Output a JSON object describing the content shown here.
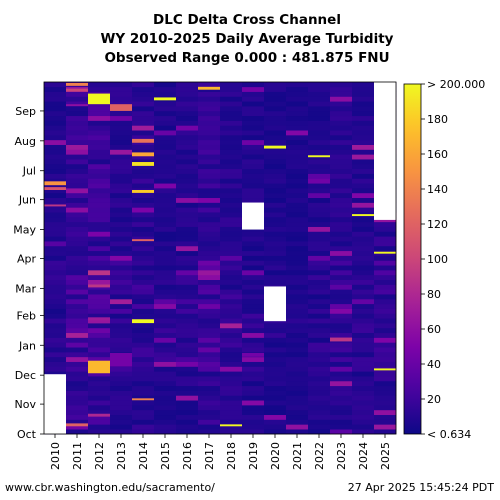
{
  "chart_data": {
    "type": "heatmap",
    "title_lines": [
      "DLC Delta Cross Channel",
      "WY 2010-2025 Daily Average Turbidity",
      "Observed Range 0.000 : 481.875 FNU"
    ],
    "x_categories": [
      "2010",
      "2011",
      "2012",
      "2013",
      "2014",
      "2015",
      "2016",
      "2017",
      "2018",
      "2019",
      "2020",
      "2021",
      "2022",
      "2023",
      "2024",
      "2025"
    ],
    "y_ticks": [
      "Oct",
      "Nov",
      "Dec",
      "Jan",
      "Feb",
      "Mar",
      "Apr",
      "May",
      "Jun",
      "Jul",
      "Aug",
      "Sep"
    ],
    "y_tick_days": [
      0,
      31,
      61,
      92,
      123,
      151,
      182,
      212,
      243,
      273,
      304,
      335
    ],
    "y_range_days": [
      0,
      365
    ],
    "colorbar": {
      "ticks": [
        {
          "label": "< 0.634",
          "value": 0
        },
        {
          "label": "20",
          "value": 20
        },
        {
          "label": "40",
          "value": 40
        },
        {
          "label": "60",
          "value": 60
        },
        {
          "label": "80",
          "value": 80
        },
        {
          "label": "100",
          "value": 100
        },
        {
          "label": "120",
          "value": 120
        },
        {
          "label": "140",
          "value": 140
        },
        {
          "label": "160",
          "value": 160
        },
        {
          "label": "180",
          "value": 180
        },
        {
          "label": "> 200.000",
          "value": 200
        }
      ],
      "range": [
        0,
        200
      ],
      "colormap": "plasma"
    },
    "base_levels": [
      8,
      14,
      18,
      10,
      12,
      8,
      10,
      14,
      10,
      8,
      7,
      6,
      8,
      10,
      9,
      12
    ],
    "missing_ranges": [
      {
        "year": "2010",
        "start_day": 0,
        "end_day": 62
      },
      {
        "year": "2019",
        "start_day": 212,
        "end_day": 240
      },
      {
        "year": "2020",
        "start_day": 117,
        "end_day": 153
      },
      {
        "year": "2025",
        "start_day": 222,
        "end_day": 365
      }
    ],
    "events": [
      {
        "year": "2010",
        "start_day": 258,
        "end_day": 262,
        "value": 150
      },
      {
        "year": "2010",
        "start_day": 253,
        "end_day": 256,
        "value": 110
      },
      {
        "year": "2010",
        "start_day": 236,
        "end_day": 238,
        "value": 90
      },
      {
        "year": "2011",
        "start_day": 361,
        "end_day": 364,
        "value": 140
      },
      {
        "year": "2011",
        "start_day": 355,
        "end_day": 358,
        "value": 100
      },
      {
        "year": "2011",
        "start_day": 8,
        "end_day": 11,
        "value": 120
      },
      {
        "year": "2011",
        "start_day": 340,
        "end_day": 342,
        "value": 60
      },
      {
        "year": "2012",
        "start_day": 342,
        "end_day": 353,
        "value": 200
      },
      {
        "year": "2012",
        "start_day": 63,
        "end_day": 76,
        "value": 170
      },
      {
        "year": "2012",
        "start_day": 18,
        "end_day": 21,
        "value": 80
      },
      {
        "year": "2012",
        "start_day": 118,
        "end_day": 121,
        "value": 70
      },
      {
        "year": "2012",
        "start_day": 152,
        "end_day": 155,
        "value": 90
      },
      {
        "year": "2013",
        "start_day": 335,
        "end_day": 342,
        "value": 120
      },
      {
        "year": "2013",
        "start_day": 70,
        "end_day": 84,
        "value": 45
      },
      {
        "year": "2014",
        "start_day": 115,
        "end_day": 119,
        "value": 200
      },
      {
        "year": "2014",
        "start_day": 278,
        "end_day": 282,
        "value": 190
      },
      {
        "year": "2014",
        "start_day": 288,
        "end_day": 292,
        "value": 160
      },
      {
        "year": "2014",
        "start_day": 302,
        "end_day": 306,
        "value": 130
      },
      {
        "year": "2014",
        "start_day": 250,
        "end_day": 253,
        "value": 180
      },
      {
        "year": "2014",
        "start_day": 200,
        "end_day": 202,
        "value": 120
      },
      {
        "year": "2014",
        "start_day": 35,
        "end_day": 37,
        "value": 140
      },
      {
        "year": "2015",
        "start_day": 346,
        "end_day": 349,
        "value": 200
      },
      {
        "year": "2017",
        "start_day": 357,
        "end_day": 360,
        "value": 170
      },
      {
        "year": "2018",
        "start_day": 8,
        "end_day": 10,
        "value": 200
      },
      {
        "year": "2019",
        "start_day": 80,
        "end_day": 84,
        "value": 45
      },
      {
        "year": "2020",
        "start_day": 296,
        "end_day": 299,
        "value": 200
      },
      {
        "year": "2022",
        "start_day": 287,
        "end_day": 289,
        "value": 200
      },
      {
        "year": "2023",
        "start_day": 96,
        "end_day": 100,
        "value": 90
      },
      {
        "year": "2024",
        "start_day": 226,
        "end_day": 228,
        "value": 200
      },
      {
        "year": "2025",
        "start_day": 66,
        "end_day": 68,
        "value": 200
      },
      {
        "year": "2025",
        "start_day": 187,
        "end_day": 189,
        "value": 200
      }
    ]
  },
  "footer": {
    "source": "www.cbr.washington.edu/sacramento/",
    "timestamp": "27 Apr 2025 15:45:24 PDT"
  }
}
